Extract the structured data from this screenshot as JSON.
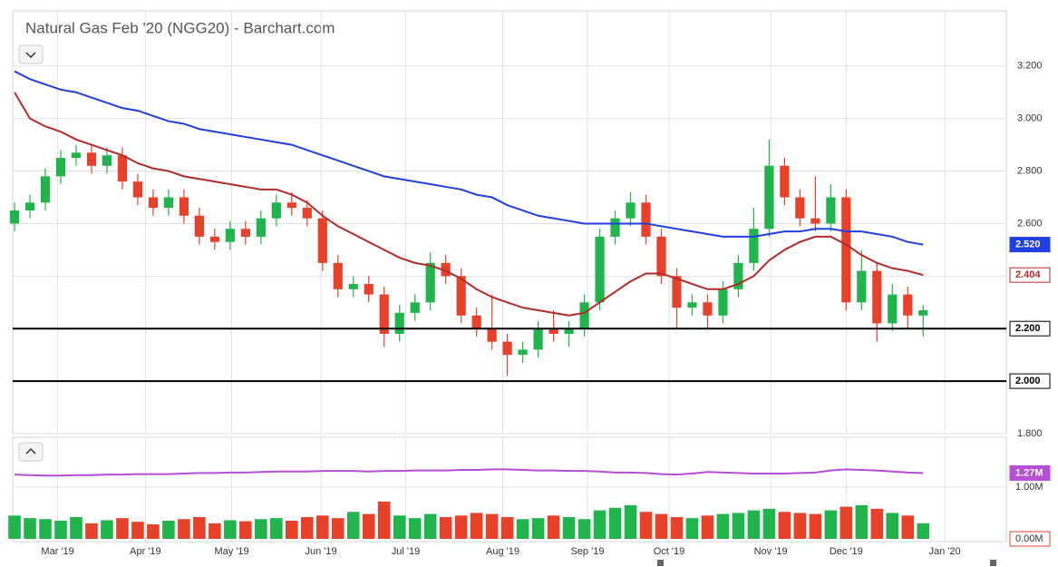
{
  "chart_data": [
    {
      "type": "candlestick",
      "title": "Natural Gas Feb '20 (NGG20) - Barchart.com",
      "categories": [
        null,
        null,
        null,
        null,
        null,
        null,
        null,
        null,
        null,
        null,
        null,
        null,
        null,
        null,
        null,
        null,
        null,
        null,
        null,
        null,
        null,
        null,
        null,
        null,
        null,
        null,
        null,
        null,
        null,
        null,
        null,
        null,
        null,
        null,
        null,
        null,
        null,
        null,
        null,
        null,
        null,
        null,
        null,
        null,
        null,
        null,
        null,
        null,
        null,
        null,
        null,
        null,
        null,
        null,
        null,
        null,
        null,
        null,
        null,
        null
      ],
      "open": [
        2.6,
        2.65,
        2.68,
        2.78,
        2.85,
        2.87,
        2.82,
        2.86,
        2.76,
        2.7,
        2.66,
        2.7,
        2.63,
        2.55,
        2.53,
        2.58,
        2.55,
        2.62,
        2.68,
        2.66,
        2.62,
        2.45,
        2.35,
        2.37,
        2.33,
        2.18,
        2.26,
        2.3,
        2.45,
        2.4,
        2.25,
        2.2,
        2.15,
        2.1,
        2.12,
        2.2,
        2.18,
        2.2,
        2.3,
        2.55,
        2.62,
        2.68,
        2.55,
        2.4,
        2.28,
        2.3,
        2.25,
        2.35,
        2.45,
        2.58,
        2.82,
        2.7,
        2.62,
        2.6,
        2.7,
        2.3,
        2.42,
        2.22,
        2.33,
        2.25
      ],
      "high": [
        2.68,
        2.71,
        2.81,
        2.88,
        2.9,
        2.9,
        2.89,
        2.89,
        2.79,
        2.73,
        2.73,
        2.73,
        2.66,
        2.58,
        2.61,
        2.61,
        2.65,
        2.71,
        2.72,
        2.69,
        2.65,
        2.48,
        2.4,
        2.4,
        2.36,
        2.29,
        2.33,
        2.49,
        2.48,
        2.43,
        2.28,
        2.33,
        2.18,
        2.15,
        2.23,
        2.27,
        2.23,
        2.33,
        2.58,
        2.65,
        2.72,
        2.71,
        2.58,
        2.43,
        2.33,
        2.33,
        2.38,
        2.48,
        2.66,
        2.92,
        2.85,
        2.73,
        2.78,
        2.75,
        2.73,
        2.5,
        2.45,
        2.37,
        2.36,
        2.29
      ],
      "low": [
        2.57,
        2.62,
        2.65,
        2.75,
        2.82,
        2.79,
        2.79,
        2.73,
        2.67,
        2.63,
        2.63,
        2.6,
        2.52,
        2.5,
        2.5,
        2.52,
        2.52,
        2.59,
        2.63,
        2.59,
        2.42,
        2.32,
        2.32,
        2.3,
        2.13,
        2.15,
        2.23,
        2.27,
        2.37,
        2.22,
        2.17,
        2.12,
        2.02,
        2.07,
        2.09,
        2.15,
        2.13,
        2.17,
        2.27,
        2.52,
        2.59,
        2.52,
        2.37,
        2.2,
        2.25,
        2.2,
        2.22,
        2.32,
        2.42,
        2.55,
        2.67,
        2.59,
        2.57,
        2.57,
        2.27,
        2.27,
        2.15,
        2.19,
        2.2,
        2.17
      ],
      "close": [
        2.65,
        2.68,
        2.78,
        2.85,
        2.87,
        2.82,
        2.86,
        2.76,
        2.7,
        2.66,
        2.7,
        2.63,
        2.55,
        2.53,
        2.58,
        2.55,
        2.62,
        2.68,
        2.66,
        2.62,
        2.45,
        2.35,
        2.37,
        2.33,
        2.18,
        2.26,
        2.3,
        2.45,
        2.4,
        2.25,
        2.2,
        2.15,
        2.1,
        2.12,
        2.2,
        2.18,
        2.2,
        2.3,
        2.55,
        2.62,
        2.68,
        2.55,
        2.4,
        2.28,
        2.3,
        2.25,
        2.35,
        2.45,
        2.58,
        2.82,
        2.7,
        2.62,
        2.6,
        2.7,
        2.3,
        2.42,
        2.22,
        2.33,
        2.25,
        2.27
      ],
      "up_color": "#1fb54a",
      "down_color": "#e8412a",
      "series": [
        {
          "color": "#1f3fe0",
          "values": [
            3.18,
            3.15,
            3.13,
            3.11,
            3.1,
            3.08,
            3.06,
            3.04,
            3.03,
            3.01,
            2.99,
            2.98,
            2.96,
            2.95,
            2.94,
            2.93,
            2.92,
            2.91,
            2.9,
            2.88,
            2.86,
            2.84,
            2.82,
            2.8,
            2.78,
            2.77,
            2.76,
            2.75,
            2.74,
            2.73,
            2.71,
            2.7,
            2.67,
            2.65,
            2.63,
            2.62,
            2.61,
            2.6,
            2.6,
            2.6,
            2.6,
            2.6,
            2.59,
            2.58,
            2.57,
            2.56,
            2.55,
            2.55,
            2.55,
            2.56,
            2.57,
            2.57,
            2.58,
            2.58,
            2.57,
            2.57,
            2.56,
            2.55,
            2.53,
            2.52
          ],
          "value_labels": [
            null,
            null,
            null,
            null,
            null,
            null,
            null,
            null,
            null,
            null,
            null,
            null,
            null,
            null,
            null,
            null,
            null,
            null,
            null,
            null,
            null,
            null,
            null,
            null,
            null,
            null,
            null,
            null,
            null,
            null,
            null,
            null,
            null,
            null,
            null,
            null,
            null,
            null,
            null,
            null,
            null,
            null,
            null,
            null,
            null,
            null,
            null,
            null,
            null,
            null,
            null,
            null,
            null,
            null,
            null,
            null,
            null,
            null,
            null,
            "2.520"
          ]
        },
        {
          "color": "#b22a2a",
          "values": [
            3.1,
            3.0,
            2.97,
            2.95,
            2.92,
            2.9,
            2.88,
            2.86,
            2.83,
            2.81,
            2.8,
            2.78,
            2.77,
            2.76,
            2.75,
            2.74,
            2.73,
            2.73,
            2.71,
            2.68,
            2.63,
            2.59,
            2.56,
            2.53,
            2.5,
            2.47,
            2.45,
            2.44,
            2.42,
            2.39,
            2.35,
            2.32,
            2.3,
            2.28,
            2.27,
            2.26,
            2.25,
            2.26,
            2.3,
            2.34,
            2.38,
            2.41,
            2.41,
            2.39,
            2.37,
            2.35,
            2.35,
            2.37,
            2.4,
            2.46,
            2.5,
            2.53,
            2.55,
            2.55,
            2.52,
            2.48,
            2.45,
            2.43,
            2.42,
            2.404
          ],
          "value_labels": [
            null,
            null,
            null,
            null,
            null,
            null,
            null,
            null,
            null,
            null,
            null,
            null,
            null,
            null,
            null,
            null,
            null,
            null,
            null,
            null,
            null,
            null,
            null,
            null,
            null,
            null,
            null,
            null,
            null,
            null,
            null,
            null,
            null,
            null,
            null,
            null,
            null,
            null,
            null,
            null,
            null,
            null,
            null,
            null,
            null,
            null,
            null,
            null,
            null,
            null,
            null,
            null,
            null,
            null,
            null,
            null,
            null,
            null,
            null,
            "2.404"
          ]
        }
      ],
      "levels": [
        {
          "value": 2.2,
          "label": "2.200"
        },
        {
          "value": 2.0,
          "label": "2.000"
        }
      ],
      "xlim": [
        -0.12,
        64.4
      ],
      "xticks": [
        {
          "value": 2.8,
          "label": "Mar '19"
        },
        {
          "value": 8.5,
          "label": "Apr '19"
        },
        {
          "value": 14.1,
          "label": "May '19"
        },
        {
          "value": 19.9,
          "label": "Jun '19"
        },
        {
          "value": 25.4,
          "label": "Jul '19"
        },
        {
          "value": 31.7,
          "label": "Aug '19"
        },
        {
          "value": 37.2,
          "label": "Sep '19"
        },
        {
          "value": 42.5,
          "label": "Oct '19"
        },
        {
          "value": 49.1,
          "label": "Nov '19"
        },
        {
          "value": 54.0,
          "label": "Dec '19"
        },
        {
          "value": 60.4,
          "label": "Jan '20"
        }
      ],
      "ylim": [
        1.8,
        3.41
      ],
      "yticks": [
        {
          "value": 1.8,
          "label": "1.800"
        },
        {
          "value": 2.0,
          "label": "2.000"
        },
        {
          "value": 2.2,
          "label": "2.200"
        },
        {
          "value": 2.4,
          "label": "2.400"
        },
        {
          "value": 2.6,
          "label": "2.600"
        },
        {
          "value": 2.8,
          "label": "2.800"
        },
        {
          "value": 3.0,
          "label": "3.000"
        },
        {
          "value": 3.2,
          "label": "3.200"
        }
      ],
      "grid": true
    },
    {
      "type": "bar",
      "categories": [
        null,
        null,
        null,
        null,
        null,
        null,
        null,
        null,
        null,
        null,
        null,
        null,
        null,
        null,
        null,
        null,
        null,
        null,
        null,
        null,
        null,
        null,
        null,
        null,
        null,
        null,
        null,
        null,
        null,
        null,
        null,
        null,
        null,
        null,
        null,
        null,
        null,
        null,
        null,
        null,
        null,
        null,
        null,
        null,
        null,
        null,
        null,
        null,
        null,
        null,
        null,
        null,
        null,
        null,
        null,
        null,
        null,
        null,
        null,
        null
      ],
      "values": [
        0.45,
        0.4,
        0.38,
        0.35,
        0.42,
        0.3,
        0.36,
        0.4,
        0.33,
        0.28,
        0.35,
        0.38,
        0.42,
        0.3,
        0.36,
        0.34,
        0.38,
        0.4,
        0.35,
        0.42,
        0.45,
        0.4,
        0.52,
        0.48,
        0.72,
        0.45,
        0.4,
        0.48,
        0.42,
        0.45,
        0.5,
        0.48,
        0.42,
        0.38,
        0.4,
        0.45,
        0.42,
        0.38,
        0.55,
        0.6,
        0.65,
        0.52,
        0.48,
        0.42,
        0.4,
        0.45,
        0.48,
        0.5,
        0.55,
        0.58,
        0.52,
        0.5,
        0.48,
        0.55,
        0.62,
        0.65,
        0.58,
        0.5,
        0.45,
        0.3
      ],
      "series": [
        {
          "color": "#b44fd6",
          "values": [
            1.24,
            1.23,
            1.22,
            1.22,
            1.23,
            1.23,
            1.24,
            1.24,
            1.25,
            1.25,
            1.25,
            1.26,
            1.27,
            1.27,
            1.28,
            1.28,
            1.29,
            1.3,
            1.3,
            1.3,
            1.31,
            1.31,
            1.31,
            1.3,
            1.31,
            1.31,
            1.32,
            1.32,
            1.32,
            1.33,
            1.33,
            1.34,
            1.34,
            1.33,
            1.32,
            1.32,
            1.31,
            1.31,
            1.3,
            1.28,
            1.28,
            1.27,
            1.25,
            1.24,
            1.26,
            1.29,
            1.28,
            1.27,
            1.26,
            1.26,
            1.26,
            1.27,
            1.28,
            1.32,
            1.34,
            1.33,
            1.32,
            1.3,
            1.28,
            1.27
          ],
          "value_labels": [
            null,
            null,
            null,
            null,
            null,
            null,
            null,
            null,
            null,
            null,
            null,
            null,
            null,
            null,
            null,
            null,
            null,
            null,
            null,
            null,
            null,
            null,
            null,
            null,
            null,
            null,
            null,
            null,
            null,
            null,
            null,
            null,
            null,
            null,
            null,
            null,
            null,
            null,
            null,
            null,
            null,
            null,
            null,
            null,
            null,
            null,
            null,
            null,
            null,
            null,
            null,
            null,
            null,
            null,
            null,
            null,
            null,
            null,
            null,
            "1.27M"
          ]
        }
      ],
      "xlim": [
        -0.12,
        64.4
      ],
      "ylim": [
        0,
        1.96
      ],
      "yticks": [
        {
          "value": 0,
          "label": "0.00M"
        },
        {
          "value": 1,
          "label": "1.00M"
        }
      ],
      "grid": true
    }
  ]
}
